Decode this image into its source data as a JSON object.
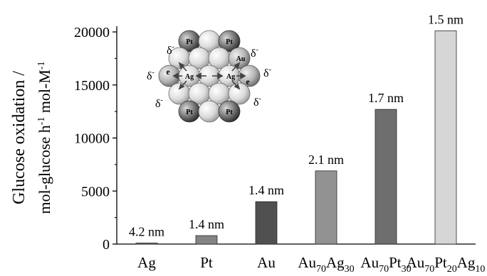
{
  "chart_data": {
    "type": "bar",
    "ylabel_line1": "Glucose oxidation /",
    "ylabel_line2_parts": [
      {
        "text": "mol-glucose h",
        "sup": null
      },
      {
        "text": "",
        "sup": "-1"
      },
      {
        "text": " mol-M",
        "sup": null
      },
      {
        "text": "",
        "sup": "-1"
      }
    ],
    "ylim": [
      0,
      20000
    ],
    "yticks": [
      0,
      5000,
      10000,
      15000,
      20000
    ],
    "categories": [
      {
        "parts": [
          {
            "t": "Ag"
          }
        ]
      },
      {
        "parts": [
          {
            "t": "Pt"
          }
        ]
      },
      {
        "parts": [
          {
            "t": "Au"
          }
        ]
      },
      {
        "parts": [
          {
            "t": "Au"
          },
          {
            "sub": "70"
          },
          {
            "t": "Ag"
          },
          {
            "sub": "30"
          }
        ]
      },
      {
        "parts": [
          {
            "t": "Au"
          },
          {
            "sub": "70"
          },
          {
            "t": "Pt"
          },
          {
            "sub": "30"
          }
        ]
      },
      {
        "parts": [
          {
            "t": "Au"
          },
          {
            "sub": "70"
          },
          {
            "t": "Pt"
          },
          {
            "sub": "20"
          },
          {
            "t": "Ag"
          },
          {
            "sub": "10"
          }
        ]
      }
    ],
    "values": [
      100,
      800,
      4000,
      6900,
      12700,
      20100
    ],
    "bar_labels": [
      "4.2 nm",
      "1.4 nm",
      "1.4 nm",
      "2.1 nm",
      "1.7 nm",
      "1.5 nm"
    ],
    "bar_colors": [
      "#7a7a7a",
      "#848484",
      "#505050",
      "#929292",
      "#6e6e6e",
      "#d6d6d6"
    ],
    "grid": false
  },
  "inset": {
    "atom_labels": {
      "pt": "Pt",
      "au": "Au",
      "ag": "Ag",
      "e": "e"
    },
    "delta": "δ",
    "delta_sup": "-"
  }
}
